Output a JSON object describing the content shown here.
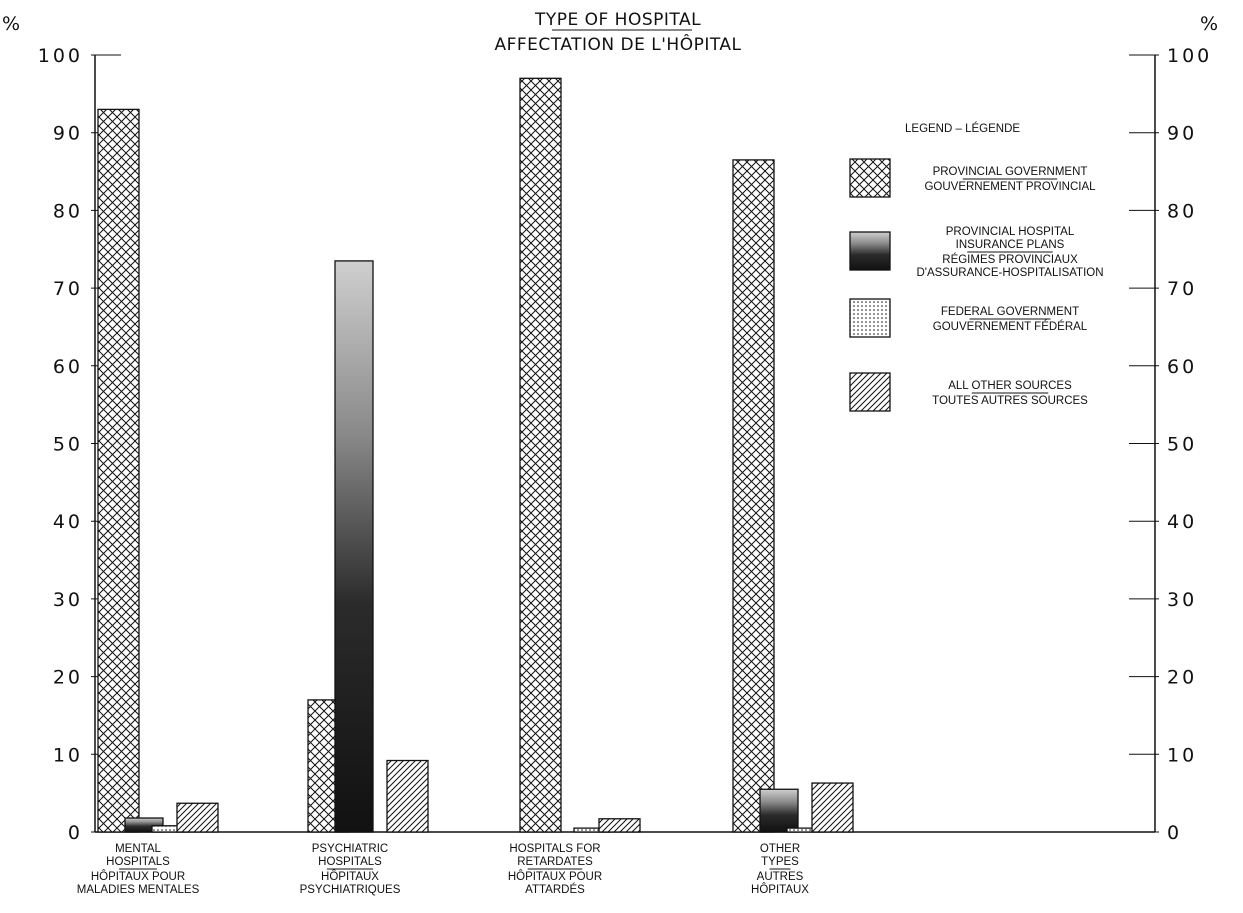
{
  "chart_data": {
    "type": "bar",
    "title_en": "TYPE OF HOSPITAL",
    "title_fr": "AFFECTATION DE L'HÔPITAL",
    "y_unit": "%",
    "ylim": [
      0,
      100
    ],
    "yticks": [
      0,
      10,
      20,
      30,
      40,
      50,
      60,
      70,
      80,
      90,
      100
    ],
    "ytick_labels": [
      "0",
      "10",
      "20",
      "30",
      "40",
      "50",
      "60",
      "70",
      "80",
      "90",
      "100"
    ],
    "grid": false,
    "legend_placement": "top-right",
    "legend_title": "LEGEND – LÉGENDE",
    "categories": [
      {
        "en": [
          "MENTAL",
          "HOSPITALS"
        ],
        "fr": [
          "HÔPITAUX POUR",
          "MALADIES MENTALES"
        ]
      },
      {
        "en": [
          "PSYCHIATRIC",
          "HOSPITALS"
        ],
        "fr": [
          "HÔPITAUX",
          "PSYCHIATRIQUES"
        ]
      },
      {
        "en": [
          "HOSPITALS FOR",
          "RETARDATES"
        ],
        "fr": [
          "HÔPITAUX POUR",
          "ATTARDÉS"
        ]
      },
      {
        "en": [
          "OTHER",
          "TYPES"
        ],
        "fr": [
          "AUTRES",
          "HÔPITAUX"
        ]
      }
    ],
    "series": [
      {
        "en": [
          "PROVINCIAL GOVERNMENT"
        ],
        "fr": [
          "GOUVERNEMENT PROVINCIAL"
        ],
        "pattern": "crosshatch",
        "values": [
          93,
          17,
          97,
          86.5
        ]
      },
      {
        "en": [
          "PROVINCIAL HOSPITAL",
          "INSURANCE PLANS"
        ],
        "fr": [
          "RÉGIMES PROVINCIAUX",
          "D'ASSURANCE-HOSPITALISATION"
        ],
        "pattern": "dark",
        "values": [
          1.8,
          73.5,
          0,
          5.5
        ]
      },
      {
        "en": [
          "FEDERAL GOVERNMENT"
        ],
        "fr": [
          "GOUVERNEMENT FÉDÉRAL"
        ],
        "pattern": "dots",
        "values": [
          0.8,
          0,
          0.5,
          0.5
        ]
      },
      {
        "en": [
          "ALL OTHER SOURCES"
        ],
        "fr": [
          "TOUTES AUTRES SOURCES"
        ],
        "pattern": "diagonal",
        "values": [
          3.7,
          9.2,
          1.7,
          6.3
        ]
      }
    ]
  }
}
